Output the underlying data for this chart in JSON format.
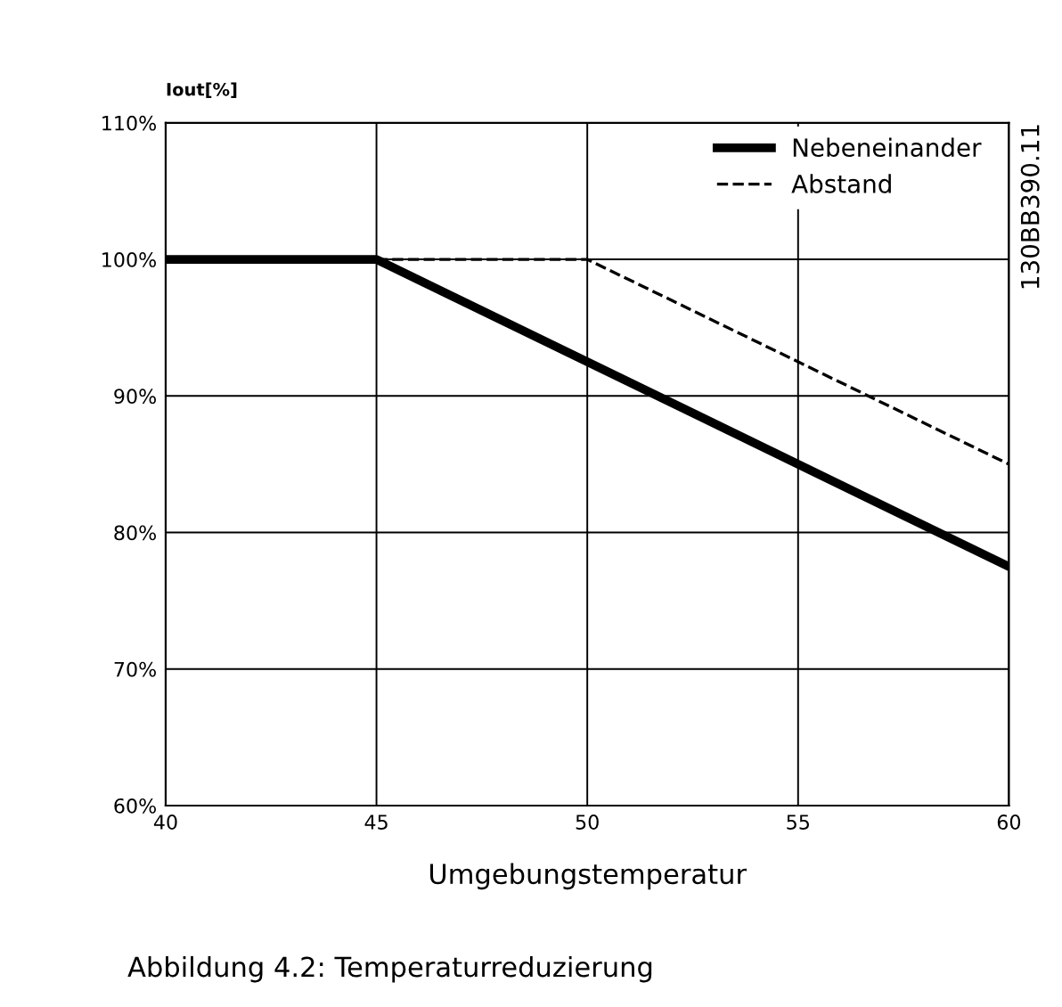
{
  "chart_data": {
    "type": "line",
    "ylabel": "Iout[%]",
    "xlabel": "Umgebungstemperatur",
    "series": [
      {
        "name": "Nebeneinander",
        "color": "#000000",
        "x": [
          40,
          45,
          60
        ],
        "values": [
          100,
          100,
          77.5
        ],
        "line_style": "solid"
      },
      {
        "name": "Abstand",
        "color": "#000000",
        "x": [
          45,
          50,
          60
        ],
        "values": [
          100,
          100,
          85
        ],
        "line_style": "dashed"
      }
    ],
    "xlim": [
      40,
      60
    ],
    "xticks": [
      40,
      45,
      50,
      55,
      60
    ],
    "ylim": [
      60,
      110
    ],
    "yticks": [
      {
        "value": 60,
        "label": "60%"
      },
      {
        "value": 70,
        "label": "70%"
      },
      {
        "value": 80,
        "label": "80%"
      },
      {
        "value": 90,
        "label": "90%"
      },
      {
        "value": 100,
        "label": "100%"
      },
      {
        "value": 110,
        "label": "110%"
      }
    ],
    "grid": true,
    "legend": "top right",
    "annotations": [
      "130BB390.11",
      "Abbildung 4.2: Temperaturreduzierung"
    ]
  }
}
